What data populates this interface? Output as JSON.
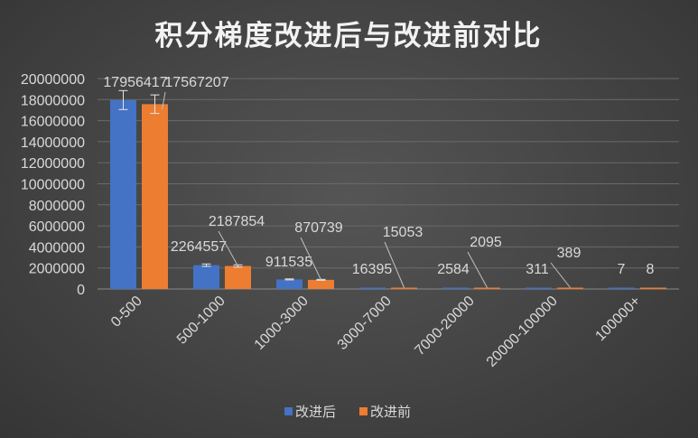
{
  "chart_data": {
    "type": "bar",
    "title": "积分梯度改进后与改进前对比",
    "categories": [
      "0-500",
      "500-1000",
      "1000-3000",
      "3000-7000",
      "7000-20000",
      "20000-100000",
      "100000+"
    ],
    "series": [
      {
        "name": "改进后",
        "color": "#4472C4",
        "values": [
          17956417,
          2264557,
          911535,
          16395,
          2584,
          311,
          7
        ],
        "value_labels": [
          "17956417",
          "2264557",
          "911535",
          "16395",
          "2584",
          "311",
          "7"
        ],
        "error": [
          900000,
          113000,
          46000,
          0,
          0,
          0,
          0
        ]
      },
      {
        "name": "改进前",
        "color": "#ED7D31",
        "values": [
          17567207,
          2187854,
          870739,
          15053,
          2095,
          389,
          8
        ],
        "value_labels": [
          "17567207",
          "2187854",
          "870739",
          "15053",
          "2095",
          "389",
          "8"
        ],
        "error": [
          880000,
          109000,
          44000,
          0,
          0,
          0,
          0
        ]
      }
    ],
    "ylim": [
      0,
      20000000
    ],
    "yticks": [
      0,
      2000000,
      4000000,
      6000000,
      8000000,
      10000000,
      12000000,
      14000000,
      16000000,
      18000000,
      20000000
    ],
    "ytick_labels": [
      "0",
      "2000000",
      "4000000",
      "6000000",
      "8000000",
      "10000000",
      "12000000",
      "14000000",
      "16000000",
      "18000000",
      "20000000"
    ],
    "xlabel": "",
    "ylabel": "",
    "grid": true,
    "legend_position": "bottom",
    "error_bars": true,
    "background": "#474747",
    "gridline_color": "#6a6a6a",
    "text_color": "#d9d9d9"
  }
}
